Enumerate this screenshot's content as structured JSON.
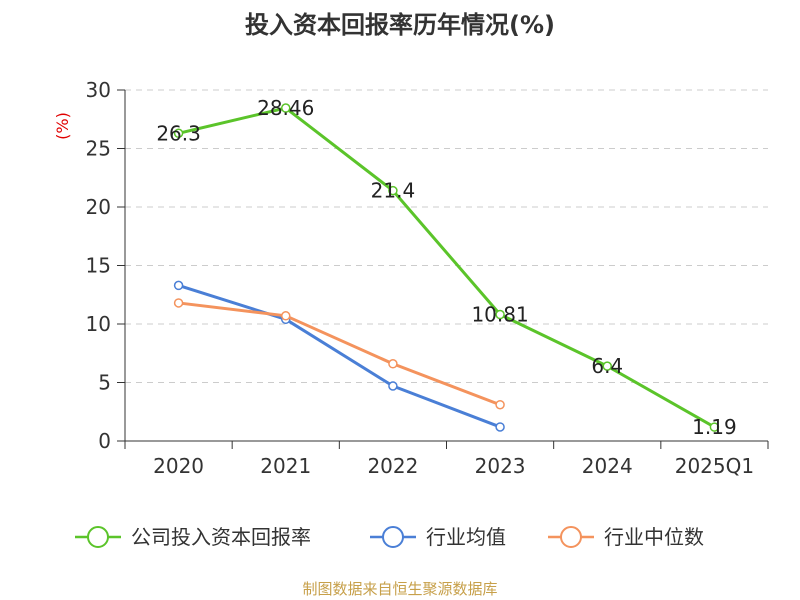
{
  "chart_data": {
    "type": "line",
    "title": "投入资本回报率历年情况(%)",
    "ylabel": "(%)",
    "categories": [
      "2020",
      "2021",
      "2022",
      "2023",
      "2024",
      "2025Q1"
    ],
    "ylim": [
      0,
      30
    ],
    "yticks": [
      0,
      5,
      10,
      15,
      20,
      25,
      30
    ],
    "grid": true,
    "legend_position": "bottom",
    "series": [
      {
        "name": "公司投入资本回报率",
        "color": "#5bc42a",
        "values": [
          26.3,
          28.46,
          21.4,
          10.81,
          6.4,
          1.19
        ],
        "labels": [
          "26.3",
          "28.46",
          "21.4",
          "10.81",
          "6.4",
          "1.19"
        ]
      },
      {
        "name": "行业均值",
        "color": "#4a7fd6",
        "values": [
          13.3,
          10.4,
          4.7,
          1.2,
          null,
          null
        ]
      },
      {
        "name": "行业中位数",
        "color": "#f4935d",
        "values": [
          11.8,
          10.7,
          6.6,
          3.1,
          null,
          null
        ]
      }
    ]
  },
  "footer": {
    "source": "制图数据来自恒生聚源数据库"
  }
}
